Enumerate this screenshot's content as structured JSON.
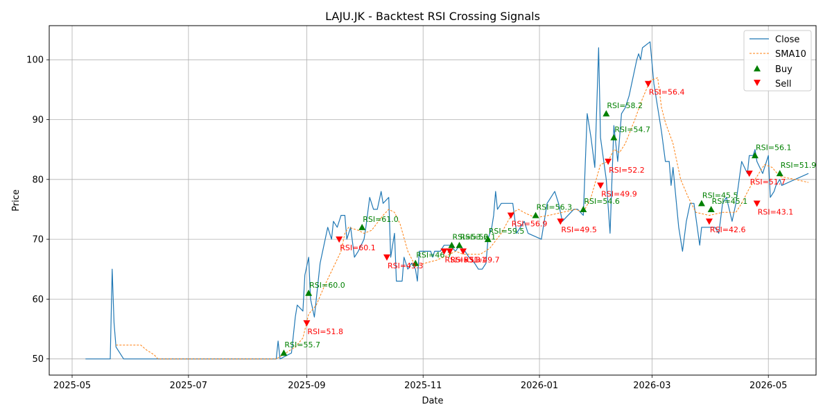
{
  "chart_data": {
    "type": "line",
    "title": "LAJU.JK - Backtest RSI Crossing Signals",
    "xlabel": "Date",
    "ylabel": "Price",
    "xlim": [
      "2025-04-19",
      "2026-05-26"
    ],
    "ylim": [
      47.3,
      105.7
    ],
    "grid": true,
    "legend_position": "top-right",
    "x_ticks": [
      "2025-05",
      "2025-07",
      "2025-09",
      "2025-11",
      "2026-01",
      "2026-03",
      "2026-05"
    ],
    "y_ticks": [
      50,
      60,
      70,
      80,
      90,
      100
    ],
    "colors": {
      "close": "#1f77b4",
      "sma": "#ff7f0e",
      "buy": "#008000",
      "sell": "#ff0000"
    },
    "legend": [
      "Close",
      "SMA10",
      "Buy",
      "Sell"
    ],
    "series": [
      {
        "name": "Close",
        "style": "solid",
        "points": [
          [
            "2025-05-08",
            50
          ],
          [
            "2025-05-21",
            50
          ],
          [
            "2025-05-22",
            65
          ],
          [
            "2025-05-23",
            56
          ],
          [
            "2025-05-24",
            52
          ],
          [
            "2025-05-28",
            50
          ],
          [
            "2025-08-16",
            50
          ],
          [
            "2025-08-17",
            53
          ],
          [
            "2025-08-18",
            50
          ],
          [
            "2025-08-24",
            51
          ],
          [
            "2025-08-26",
            57
          ],
          [
            "2025-08-27",
            59
          ],
          [
            "2025-08-30",
            58
          ],
          [
            "2025-08-31",
            64
          ],
          [
            "2025-09-02",
            67
          ],
          [
            "2025-09-03",
            60
          ],
          [
            "2025-09-05",
            57
          ],
          [
            "2025-09-06",
            60
          ],
          [
            "2025-09-08",
            66
          ],
          [
            "2025-09-12",
            72
          ],
          [
            "2025-09-14",
            70
          ],
          [
            "2025-09-15",
            73
          ],
          [
            "2025-09-17",
            72
          ],
          [
            "2025-09-19",
            74
          ],
          [
            "2025-09-21",
            74
          ],
          [
            "2025-09-22",
            70
          ],
          [
            "2025-09-24",
            72
          ],
          [
            "2025-09-26",
            67
          ],
          [
            "2025-09-28",
            68
          ],
          [
            "2025-10-01",
            70
          ],
          [
            "2025-10-02",
            72
          ],
          [
            "2025-10-04",
            77
          ],
          [
            "2025-10-06",
            75
          ],
          [
            "2025-10-08",
            75
          ],
          [
            "2025-10-10",
            78
          ],
          [
            "2025-10-11",
            76
          ],
          [
            "2025-10-14",
            77
          ],
          [
            "2025-10-15",
            67
          ],
          [
            "2025-10-17",
            71
          ],
          [
            "2025-10-18",
            63
          ],
          [
            "2025-10-21",
            63
          ],
          [
            "2025-10-22",
            67
          ],
          [
            "2025-10-24",
            65
          ],
          [
            "2025-10-26",
            66
          ],
          [
            "2025-10-28",
            65
          ],
          [
            "2025-10-29",
            63
          ],
          [
            "2025-10-30",
            68
          ],
          [
            "2025-11-05",
            68
          ],
          [
            "2025-11-06",
            67
          ],
          [
            "2025-11-07",
            68
          ],
          [
            "2025-11-10",
            68
          ],
          [
            "2025-11-12",
            69
          ],
          [
            "2025-11-15",
            69
          ],
          [
            "2025-11-18",
            68
          ],
          [
            "2025-11-20",
            69
          ],
          [
            "2025-11-23",
            68
          ],
          [
            "2025-11-25",
            67
          ],
          [
            "2025-11-28",
            66
          ],
          [
            "2025-11-30",
            65
          ],
          [
            "2025-12-02",
            65
          ],
          [
            "2025-12-04",
            66
          ],
          [
            "2025-12-05",
            70
          ],
          [
            "2025-12-07",
            72
          ],
          [
            "2025-12-08",
            74
          ],
          [
            "2025-12-09",
            78
          ],
          [
            "2025-12-10",
            75
          ],
          [
            "2025-12-12",
            76
          ],
          [
            "2025-12-18",
            76
          ],
          [
            "2025-12-20",
            71
          ],
          [
            "2025-12-22",
            72
          ],
          [
            "2025-12-24",
            73
          ],
          [
            "2025-12-26",
            71
          ],
          [
            "2026-01-02",
            70
          ],
          [
            "2026-01-05",
            76
          ],
          [
            "2026-01-07",
            77
          ],
          [
            "2026-01-09",
            78
          ],
          [
            "2026-01-11",
            76
          ],
          [
            "2026-01-13",
            73
          ],
          [
            "2026-01-16",
            74
          ],
          [
            "2026-01-19",
            75
          ],
          [
            "2026-01-21",
            75
          ],
          [
            "2026-01-24",
            74
          ],
          [
            "2026-01-26",
            91
          ],
          [
            "2026-01-28",
            87
          ],
          [
            "2026-01-30",
            82
          ],
          [
            "2026-02-01",
            102
          ],
          [
            "2026-02-02",
            87
          ],
          [
            "2026-02-05",
            80
          ],
          [
            "2026-02-07",
            71
          ],
          [
            "2026-02-09",
            89
          ],
          [
            "2026-02-11",
            83
          ],
          [
            "2026-02-13",
            91
          ],
          [
            "2026-02-15",
            92
          ],
          [
            "2026-02-17",
            94
          ],
          [
            "2026-02-21",
            100
          ],
          [
            "2026-02-22",
            101
          ],
          [
            "2026-02-23",
            100
          ],
          [
            "2026-02-24",
            102
          ],
          [
            "2026-02-28",
            103
          ],
          [
            "2026-03-02",
            96
          ],
          [
            "2026-03-04",
            92
          ],
          [
            "2026-03-06",
            88
          ],
          [
            "2026-03-08",
            83
          ],
          [
            "2026-03-10",
            83
          ],
          [
            "2026-03-11",
            79
          ],
          [
            "2026-03-12",
            82
          ],
          [
            "2026-03-15",
            72
          ],
          [
            "2026-03-17",
            68
          ],
          [
            "2026-03-19",
            73
          ],
          [
            "2026-03-21",
            76
          ],
          [
            "2026-03-23",
            76
          ],
          [
            "2026-03-26",
            69
          ],
          [
            "2026-03-27",
            72
          ],
          [
            "2026-04-03",
            72
          ],
          [
            "2026-04-05",
            71
          ],
          [
            "2026-04-07",
            76
          ],
          [
            "2026-04-09",
            77
          ],
          [
            "2026-04-12",
            73
          ],
          [
            "2026-04-14",
            76
          ],
          [
            "2026-04-17",
            83
          ],
          [
            "2026-04-20",
            81
          ],
          [
            "2026-04-21",
            84
          ],
          [
            "2026-04-23",
            84
          ],
          [
            "2026-04-24",
            85
          ],
          [
            "2026-04-25",
            83
          ],
          [
            "2026-04-28",
            81
          ],
          [
            "2026-05-01",
            84
          ],
          [
            "2026-05-02",
            77
          ],
          [
            "2026-05-04",
            78
          ],
          [
            "2026-05-05",
            79
          ],
          [
            "2026-05-07",
            80
          ],
          [
            "2026-05-08",
            79
          ],
          [
            "2026-05-15",
            80
          ],
          [
            "2026-05-22",
            81
          ]
        ]
      },
      {
        "name": "SMA10",
        "style": "dashed",
        "points": [
          [
            "2025-05-24",
            52.3
          ],
          [
            "2025-06-06",
            52.3
          ],
          [
            "2025-06-09",
            51.5
          ],
          [
            "2025-06-13",
            50.7
          ],
          [
            "2025-06-15",
            50
          ],
          [
            "2025-08-16",
            50
          ],
          [
            "2025-08-21",
            51
          ],
          [
            "2025-08-26",
            52
          ],
          [
            "2025-08-30",
            53.5
          ],
          [
            "2025-09-02",
            57.5
          ],
          [
            "2025-09-06",
            59
          ],
          [
            "2025-09-08",
            60.5
          ],
          [
            "2025-09-10",
            62
          ],
          [
            "2025-09-13",
            64
          ],
          [
            "2025-09-16",
            66
          ],
          [
            "2025-09-19",
            68
          ],
          [
            "2025-09-21",
            71
          ],
          [
            "2025-09-23",
            72
          ],
          [
            "2025-09-28",
            71.5
          ],
          [
            "2025-10-01",
            71
          ],
          [
            "2025-10-05",
            71.5
          ],
          [
            "2025-10-11",
            74
          ],
          [
            "2025-10-14",
            75
          ],
          [
            "2025-10-17",
            74.5
          ],
          [
            "2025-10-20",
            72.5
          ],
          [
            "2025-10-24",
            68
          ],
          [
            "2025-10-28",
            65.5
          ],
          [
            "2025-11-02",
            66
          ],
          [
            "2025-11-08",
            66.5
          ],
          [
            "2025-11-15",
            67.5
          ],
          [
            "2025-11-18",
            68
          ],
          [
            "2025-11-22",
            67.5
          ],
          [
            "2025-12-01",
            67.5
          ],
          [
            "2025-12-06",
            68.5
          ],
          [
            "2025-12-12",
            71
          ],
          [
            "2025-12-18",
            74.5
          ],
          [
            "2025-12-21",
            75
          ],
          [
            "2025-12-25",
            74.3
          ],
          [
            "2025-12-30",
            73.6
          ],
          [
            "2026-01-06",
            74
          ],
          [
            "2026-01-13",
            74.5
          ],
          [
            "2026-01-20",
            75
          ],
          [
            "2026-01-24",
            74.5
          ],
          [
            "2026-01-28",
            77
          ],
          [
            "2026-02-02",
            82.5
          ],
          [
            "2026-02-06",
            83
          ],
          [
            "2026-02-09",
            85
          ],
          [
            "2026-02-12",
            84.5
          ],
          [
            "2026-02-15",
            86
          ],
          [
            "2026-02-20",
            90
          ],
          [
            "2026-02-24",
            93.5
          ],
          [
            "2026-02-28",
            96.5
          ],
          [
            "2026-03-04",
            97
          ],
          [
            "2026-03-06",
            92
          ],
          [
            "2026-03-08",
            89.5
          ],
          [
            "2026-03-12",
            86
          ],
          [
            "2026-03-16",
            80
          ],
          [
            "2026-03-20",
            77
          ],
          [
            "2026-03-24",
            74.5
          ],
          [
            "2026-03-31",
            74
          ],
          [
            "2026-04-07",
            74.5
          ],
          [
            "2026-04-14",
            74.5
          ],
          [
            "2026-04-17",
            76
          ],
          [
            "2026-04-21",
            78.5
          ],
          [
            "2026-04-26",
            81
          ],
          [
            "2026-04-29",
            82.5
          ],
          [
            "2026-05-03",
            82
          ],
          [
            "2026-05-07",
            80.5
          ],
          [
            "2026-05-15",
            80
          ],
          [
            "2026-05-22",
            79.5
          ]
        ]
      }
    ],
    "buy_signals": [
      {
        "date": "2025-08-20",
        "price": 51,
        "label": "RSI=55.7"
      },
      {
        "date": "2025-09-02",
        "price": 61,
        "label": "RSI=60.0"
      },
      {
        "date": "2025-09-30",
        "price": 72,
        "label": "RSI=61.0"
      },
      {
        "date": "2025-10-28",
        "price": 66,
        "label": "RSI=46.7"
      },
      {
        "date": "2025-11-16",
        "price": 69,
        "label": "RSI=53.6"
      },
      {
        "date": "2025-11-20",
        "price": 69,
        "label": "RSI=52.1"
      },
      {
        "date": "2025-12-05",
        "price": 70,
        "label": "RSI=59.5"
      },
      {
        "date": "2025-12-30",
        "price": 74,
        "label": "RSI=56.3"
      },
      {
        "date": "2026-01-24",
        "price": 75,
        "label": "RSI=54.6"
      },
      {
        "date": "2026-02-05",
        "price": 91,
        "label": "RSI=58.2"
      },
      {
        "date": "2026-02-09",
        "price": 87,
        "label": "RSI=54.7"
      },
      {
        "date": "2026-03-27",
        "price": 76,
        "label": "RSI=45.5"
      },
      {
        "date": "2026-04-01",
        "price": 75,
        "label": "RSI=45.1"
      },
      {
        "date": "2026-04-24",
        "price": 84,
        "label": "RSI=56.1"
      },
      {
        "date": "2026-05-07",
        "price": 81,
        "label": "RSI=51.9"
      }
    ],
    "sell_signals": [
      {
        "date": "2025-09-01",
        "price": 56,
        "label": "RSI=51.8"
      },
      {
        "date": "2025-09-18",
        "price": 70,
        "label": "RSI=60.1"
      },
      {
        "date": "2025-10-13",
        "price": 67,
        "label": "RSI=43.3"
      },
      {
        "date": "2025-11-12",
        "price": 68,
        "label": "RSI=53.3"
      },
      {
        "date": "2025-11-15",
        "price": 68,
        "label": "RSI=51.1"
      },
      {
        "date": "2025-11-22",
        "price": 68,
        "label": "RSI=49.7"
      },
      {
        "date": "2025-12-17",
        "price": 74,
        "label": "RSI=56.9"
      },
      {
        "date": "2026-01-12",
        "price": 73,
        "label": "RSI=49.5"
      },
      {
        "date": "2026-02-02",
        "price": 79,
        "label": "RSI=49.9"
      },
      {
        "date": "2026-02-06",
        "price": 83,
        "label": "RSI=52.2"
      },
      {
        "date": "2026-02-27",
        "price": 96,
        "label": "RSI=56.4"
      },
      {
        "date": "2026-03-31",
        "price": 73,
        "label": "RSI=42.6"
      },
      {
        "date": "2026-04-21",
        "price": 81,
        "label": "RSI=51.7"
      },
      {
        "date": "2026-04-25",
        "price": 76,
        "label": "RSI=43.1"
      }
    ]
  }
}
